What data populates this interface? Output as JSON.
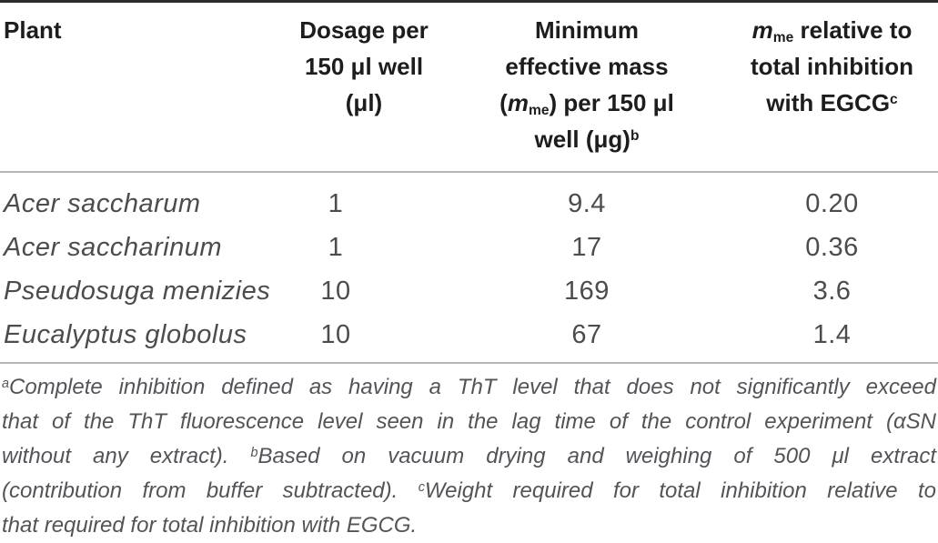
{
  "colors": {
    "header_text": "#1d1d1f",
    "body_text": "#4b4c4e",
    "footnote_text": "#525458",
    "top_rule": "#2b2b2d",
    "divider_rule": "#b5b6b8",
    "background": "#ffffff"
  },
  "table": {
    "header": {
      "plant": {
        "lines": [
          [
            {
              "t": "Plant"
            }
          ]
        ]
      },
      "dosage": {
        "lines": [
          [
            {
              "t": "Dosage per"
            }
          ],
          [
            {
              "t": "150 μl well"
            }
          ],
          [
            {
              "t": "(μl)"
            }
          ]
        ]
      },
      "mass": {
        "lines": [
          [
            {
              "t": "Minimum"
            }
          ],
          [
            {
              "t": "effective mass"
            }
          ],
          [
            {
              "t": "("
            },
            {
              "t": "m",
              "i": true
            },
            {
              "t": "me",
              "sub": true
            },
            {
              "t": ") per 150 μl"
            }
          ],
          [
            {
              "t": "well (μg)"
            },
            {
              "t": "b",
              "sup": true
            }
          ]
        ]
      },
      "relative": {
        "lines": [
          [
            {
              "t": "m",
              "i": true
            },
            {
              "t": "me",
              "sub": true
            },
            {
              "t": " relative to"
            }
          ],
          [
            {
              "t": "total inhibition"
            }
          ],
          [
            {
              "t": "with EGCG"
            },
            {
              "t": "c",
              "sup": true
            }
          ]
        ]
      }
    },
    "rows": [
      {
        "plant": "Acer saccharum",
        "dosage": "1",
        "mass": "9.4",
        "relative": "0.20"
      },
      {
        "plant": "Acer saccharinum",
        "dosage": "1",
        "mass": "17",
        "relative": "0.36"
      },
      {
        "plant": "Pseudosuga menizies",
        "dosage": "10",
        "mass": "169",
        "relative": "3.6"
      },
      {
        "plant": "Eucalyptus globolus",
        "dosage": "10",
        "mass": "67",
        "relative": "1.4"
      }
    ]
  },
  "footnotes": {
    "lines": [
      [
        {
          "t": "a",
          "sup": true
        },
        {
          "t": "Complete inhibition defined as having a ThT level that does not significantly exceed"
        }
      ],
      [
        {
          "t": "that of the ThT fluorescence level seen in the lag time of the control experiment (αSN"
        }
      ],
      [
        {
          "t": "without any extract). "
        },
        {
          "t": "b",
          "sup": true
        },
        {
          "t": "Based on vacuum drying and weighing of 500 μl extract"
        }
      ],
      [
        {
          "t": "(contribution from buffer subtracted). "
        },
        {
          "t": "c",
          "sup": true
        },
        {
          "t": "Weight required for total inhibition relative to"
        }
      ],
      [
        {
          "t": "that required for total inhibition with EGCG."
        }
      ]
    ]
  }
}
